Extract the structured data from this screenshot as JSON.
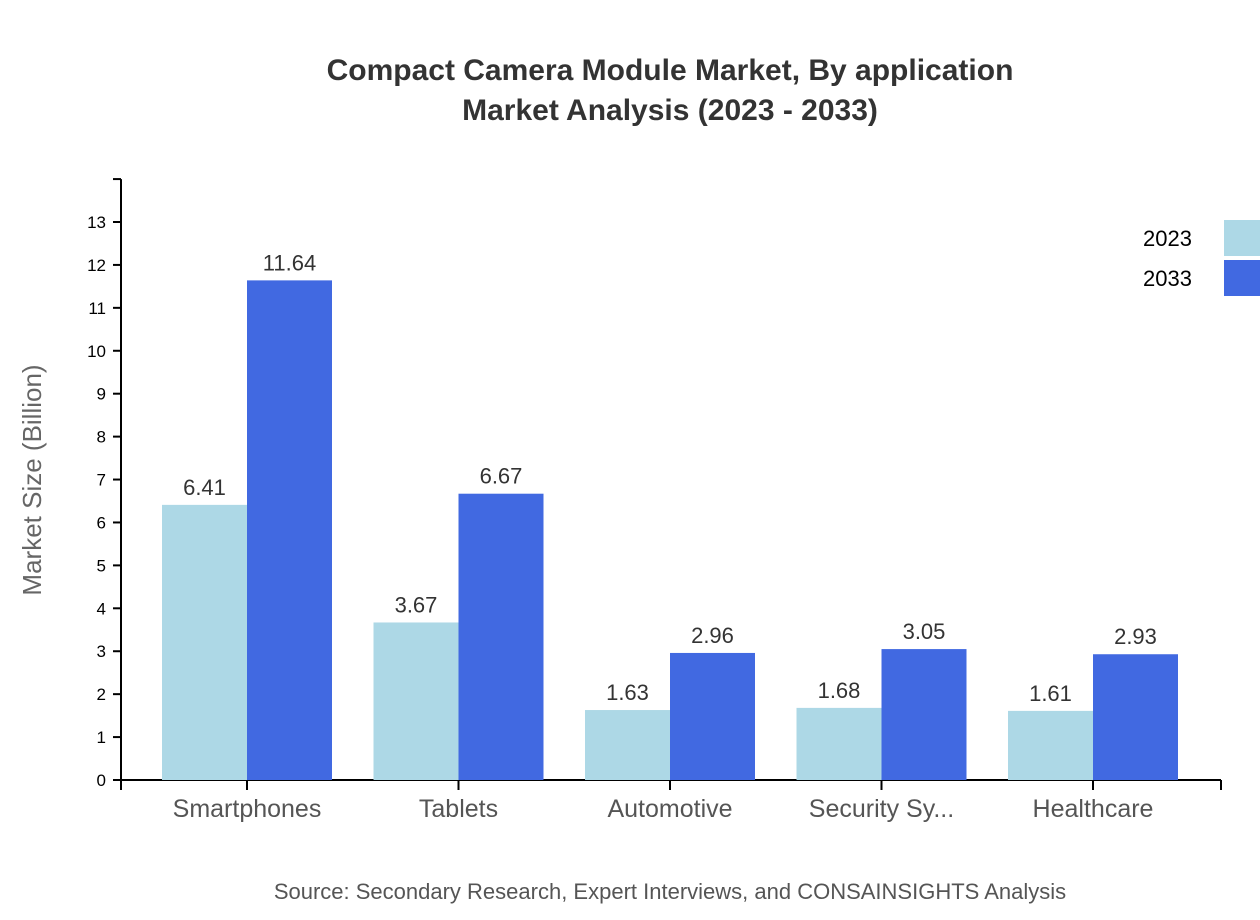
{
  "chart_data": {
    "type": "bar",
    "title": "Compact Camera Module Market, By application",
    "subtitle": "Market Analysis (2023 - 2033)",
    "xlabel": "",
    "ylabel": "Market Size (Billion)",
    "ylim": [
      0,
      14
    ],
    "yticks": [
      0,
      1,
      2,
      3,
      4,
      5,
      6,
      7,
      8,
      9,
      10,
      11,
      12,
      13
    ],
    "categories": [
      "Smartphones",
      "Tablets",
      "Automotive",
      "Security Sy...",
      "Healthcare"
    ],
    "series": [
      {
        "name": "2023",
        "color": "#add8e6",
        "values": [
          6.41,
          3.67,
          1.63,
          1.68,
          1.61
        ]
      },
      {
        "name": "2033",
        "color": "#4169e1",
        "values": [
          11.64,
          6.67,
          2.96,
          3.05,
          2.93
        ]
      }
    ],
    "legend_position": "top-right",
    "grid": false,
    "source": "Source: Secondary Research, Expert Interviews, and CONSAINSIGHTS Analysis"
  }
}
